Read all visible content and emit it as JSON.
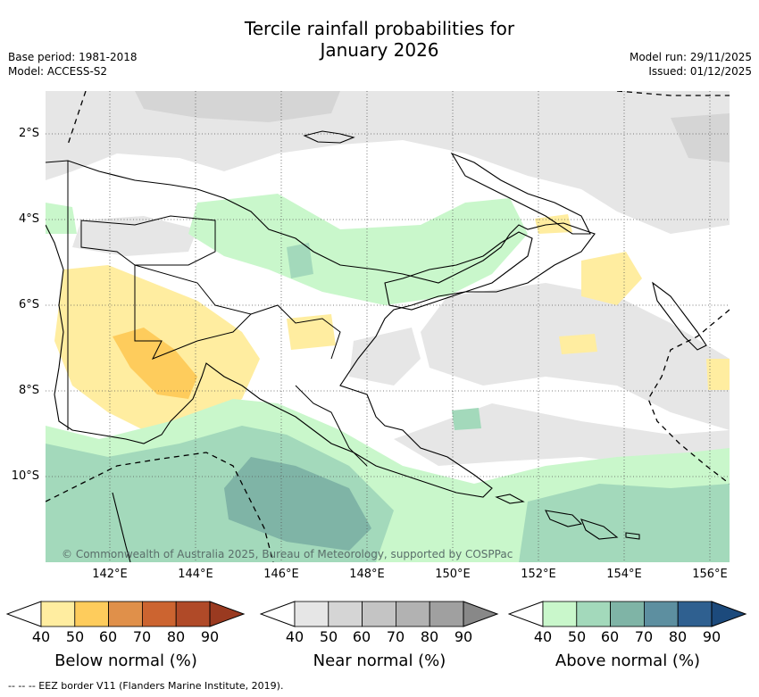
{
  "title_line1": "Tercile rainfall probabilities for",
  "title_line2": "January 2026",
  "meta": {
    "base_period": "Base period: 1981-2018",
    "model": "Model: ACCESS-S2",
    "model_run": "Model run: 29/11/2025",
    "issued": "Issued: 01/12/2025"
  },
  "map": {
    "copyright": "© Commonwealth of Australia 2025, Bureau of Meteorology, supported by COSPPac",
    "lat_ticks": [
      "2°S",
      "4°S",
      "6°S",
      "8°S",
      "10°S"
    ],
    "lon_ticks": [
      "142°E",
      "144°E",
      "146°E",
      "148°E",
      "150°E",
      "152°E",
      "154°E",
      "156°E"
    ]
  },
  "colorbars": [
    {
      "label": "Below normal (%)",
      "ticks": [
        "40",
        "50",
        "60",
        "70",
        "80",
        "90"
      ],
      "colors": [
        "#ffffff",
        "#ffeda0",
        "#fecc5c",
        "#e0904a",
        "#cc6430",
        "#b04a28",
        "#9a3a20"
      ]
    },
    {
      "label": "Near normal (%)",
      "ticks": [
        "40",
        "50",
        "60",
        "70",
        "80",
        "90"
      ],
      "colors": [
        "#ffffff",
        "#e6e6e6",
        "#d5d5d5",
        "#c4c4c4",
        "#b2b2b2",
        "#a0a0a0",
        "#888888"
      ]
    },
    {
      "label": "Above normal (%)",
      "ticks": [
        "40",
        "50",
        "60",
        "70",
        "80",
        "90"
      ],
      "colors": [
        "#ffffff",
        "#c9f7cb",
        "#a3d9bb",
        "#7fb4a6",
        "#5d8fa0",
        "#2f6090",
        "#1c4a7c"
      ]
    }
  ],
  "footnote": "-- -- -- EEZ border V11 (Flanders Marine Institute, 2019)."
}
